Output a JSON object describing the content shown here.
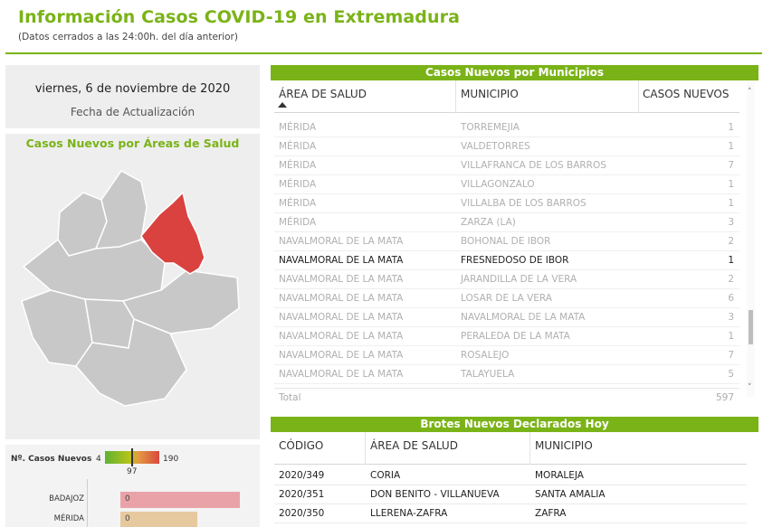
{
  "header": {
    "title": "Información Casos COVID-19 en Extremadura",
    "subtitle": "(Datos cerrados a las 24:00h. del día anterior)"
  },
  "date_card": {
    "date": "viernes, 6 de noviembre de 2020",
    "label": "Fecha de Actualización"
  },
  "map": {
    "title": "Casos Nuevos por Áreas de Salud",
    "highlight_color": "#d9423f",
    "region_color": "#c8c8c8"
  },
  "legend": {
    "title": "Nº. Casos Nuevos",
    "min": "4",
    "mid": "97",
    "max": "190",
    "bars": [
      {
        "label": "BADAJOZ",
        "value": "0",
        "color": "#e9a3a8"
      },
      {
        "label": "MÉRIDA",
        "value": "0",
        "color": "#e7c9a0"
      }
    ]
  },
  "municipios": {
    "title": "Casos Nuevos por Municipios",
    "columns": [
      "ÁREA DE SALUD",
      "MUNICIPIO",
      "CASOS NUEVOS"
    ],
    "rows": [
      {
        "area": "MÉRIDA",
        "municipio": "TORREMEJIA",
        "casos": "1"
      },
      {
        "area": "MÉRIDA",
        "municipio": "VALDETORRES",
        "casos": "1"
      },
      {
        "area": "MÉRIDA",
        "municipio": "VILLAFRANCA DE LOS BARROS",
        "casos": "7"
      },
      {
        "area": "MÉRIDA",
        "municipio": "VILLAGONZALO",
        "casos": "1"
      },
      {
        "area": "MÉRIDA",
        "municipio": "VILLALBA DE LOS BARROS",
        "casos": "1"
      },
      {
        "area": "MÉRIDA",
        "municipio": "ZARZA (LA)",
        "casos": "3"
      },
      {
        "area": "NAVALMORAL DE LA MATA",
        "municipio": "BOHONAL DE IBOR",
        "casos": "2"
      },
      {
        "area": "NAVALMORAL DE LA MATA",
        "municipio": "FRESNEDOSO DE IBOR",
        "casos": "1",
        "active": true
      },
      {
        "area": "NAVALMORAL DE LA MATA",
        "municipio": "JARANDILLA DE LA VERA",
        "casos": "2"
      },
      {
        "area": "NAVALMORAL DE LA MATA",
        "municipio": "LOSAR DE LA VERA",
        "casos": "6"
      },
      {
        "area": "NAVALMORAL DE LA MATA",
        "municipio": "NAVALMORAL DE LA MATA",
        "casos": "3"
      },
      {
        "area": "NAVALMORAL DE LA MATA",
        "municipio": "PERALEDA DE LA MATA",
        "casos": "1"
      },
      {
        "area": "NAVALMORAL DE LA MATA",
        "municipio": "ROSALEJO",
        "casos": "7"
      },
      {
        "area": "NAVALMORAL DE LA MATA",
        "municipio": "TALAYUELA",
        "casos": "5"
      }
    ],
    "total_label": "Total",
    "total_value": "597"
  },
  "brotes": {
    "title": "Brotes Nuevos Declarados Hoy",
    "columns": [
      "CÓDIGO",
      "ÁREA DE SALUD",
      "MUNICIPIO"
    ],
    "rows": [
      {
        "codigo": "2020/349",
        "area": "CORIA",
        "municipio": "MORALEJA"
      },
      {
        "codigo": "2020/351",
        "area": "DON BENITO - VILLANUEVA",
        "municipio": "SANTA AMALIA"
      },
      {
        "codigo": "2020/350",
        "area": "LLERENA-ZAFRA",
        "municipio": "ZAFRA"
      }
    ]
  }
}
